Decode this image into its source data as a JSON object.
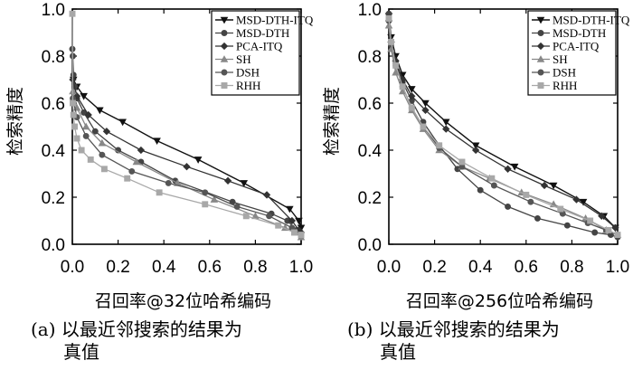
{
  "chart_data": [
    {
      "type": "line",
      "xlabel": "召回率@32位哈希编码",
      "ylabel": "检索精度",
      "caption_line1": "(a) 以最近邻搜索的结果为",
      "caption_line2": "真值",
      "xlim": [
        0.0,
        1.0
      ],
      "ylim": [
        0.0,
        1.0
      ],
      "xticks": [
        "0.0",
        "0.2",
        "0.4",
        "0.6",
        "0.8",
        "1.0"
      ],
      "yticks": [
        "0.0",
        "0.2",
        "0.4",
        "0.6",
        "0.8",
        "1.0"
      ],
      "legend_position": "top-right",
      "series": [
        {
          "name": "MSD-DTH-ITQ",
          "marker": "triangle-down",
          "x": [
            0.005,
            0.02,
            0.05,
            0.12,
            0.22,
            0.37,
            0.55,
            0.75,
            0.95,
            0.99,
            1.0
          ],
          "y": [
            0.7,
            0.67,
            0.63,
            0.57,
            0.52,
            0.44,
            0.36,
            0.26,
            0.15,
            0.1,
            0.07
          ]
        },
        {
          "name": "MSD-DTH",
          "marker": "circle",
          "x": [
            0.0,
            0.002,
            0.005,
            0.01,
            0.02,
            0.05,
            0.1,
            0.2,
            0.3,
            0.45,
            0.7,
            0.87,
            0.94,
            0.98,
            1.0
          ],
          "y": [
            0.83,
            0.8,
            0.72,
            0.67,
            0.62,
            0.56,
            0.48,
            0.4,
            0.35,
            0.27,
            0.18,
            0.13,
            0.1,
            0.06,
            0.04
          ]
        },
        {
          "name": "PCA-ITQ",
          "marker": "diamond",
          "x": [
            0.002,
            0.02,
            0.07,
            0.15,
            0.3,
            0.5,
            0.68,
            0.85,
            0.96,
            0.99,
            1.0
          ],
          "y": [
            0.7,
            0.63,
            0.55,
            0.48,
            0.4,
            0.33,
            0.27,
            0.21,
            0.1,
            0.06,
            0.05
          ]
        },
        {
          "name": "SH",
          "marker": "triangle-up",
          "x": [
            0.002,
            0.02,
            0.06,
            0.13,
            0.28,
            0.46,
            0.62,
            0.8,
            0.93,
            0.98,
            1.0
          ],
          "y": [
            0.65,
            0.58,
            0.5,
            0.43,
            0.35,
            0.26,
            0.19,
            0.12,
            0.07,
            0.05,
            0.03
          ]
        },
        {
          "name": "DSH",
          "marker": "circle",
          "x": [
            0.002,
            0.02,
            0.06,
            0.13,
            0.26,
            0.42,
            0.58,
            0.72,
            0.86,
            0.96,
            1.0
          ],
          "y": [
            0.62,
            0.54,
            0.46,
            0.38,
            0.31,
            0.26,
            0.22,
            0.16,
            0.12,
            0.07,
            0.04
          ]
        },
        {
          "name": "RHH",
          "marker": "square",
          "x": [
            0.0,
            0.002,
            0.005,
            0.01,
            0.02,
            0.04,
            0.08,
            0.14,
            0.24,
            0.38,
            0.58,
            0.76,
            0.9,
            0.97,
            1.0
          ],
          "y": [
            0.98,
            0.6,
            0.55,
            0.5,
            0.45,
            0.4,
            0.36,
            0.32,
            0.28,
            0.22,
            0.17,
            0.12,
            0.08,
            0.05,
            0.04
          ]
        }
      ]
    },
    {
      "type": "line",
      "xlabel": "召回率@256位哈希编码",
      "ylabel": "检索精度",
      "caption_line1": "(b) 以最近邻搜索的结果为",
      "caption_line2": "真值",
      "xlim": [
        0.0,
        1.0
      ],
      "ylim": [
        0.0,
        1.0
      ],
      "xticks": [
        "0.0",
        "0.2",
        "0.4",
        "0.6",
        "0.8",
        "1.0"
      ],
      "yticks": [
        "0.0",
        "0.2",
        "0.4",
        "0.6",
        "0.8",
        "1.0"
      ],
      "legend_position": "top-right",
      "series": [
        {
          "name": "MSD-DTH-ITQ",
          "marker": "triangle-down",
          "x": [
            0.0,
            0.01,
            0.03,
            0.06,
            0.1,
            0.16,
            0.25,
            0.38,
            0.55,
            0.72,
            0.85,
            0.94,
            0.99
          ],
          "y": [
            0.97,
            0.88,
            0.8,
            0.72,
            0.66,
            0.6,
            0.52,
            0.42,
            0.33,
            0.25,
            0.18,
            0.12,
            0.07
          ]
        },
        {
          "name": "MSD-DTH",
          "marker": "circle",
          "x": [
            0.0,
            0.01,
            0.03,
            0.06,
            0.1,
            0.15,
            0.22,
            0.3,
            0.4,
            0.52,
            0.65,
            0.78,
            0.9,
            0.97,
            1.0
          ],
          "y": [
            0.98,
            0.85,
            0.77,
            0.69,
            0.61,
            0.52,
            0.42,
            0.32,
            0.23,
            0.16,
            0.11,
            0.08,
            0.05,
            0.04,
            0.03
          ]
        },
        {
          "name": "PCA-ITQ",
          "marker": "diamond",
          "x": [
            0.0,
            0.01,
            0.03,
            0.06,
            0.1,
            0.16,
            0.25,
            0.38,
            0.52,
            0.68,
            0.82,
            0.93,
            0.99
          ],
          "y": [
            0.95,
            0.86,
            0.78,
            0.7,
            0.63,
            0.57,
            0.49,
            0.4,
            0.32,
            0.25,
            0.19,
            0.12,
            0.07
          ]
        },
        {
          "name": "SH",
          "marker": "triangle-up",
          "x": [
            0.0,
            0.01,
            0.03,
            0.06,
            0.1,
            0.15,
            0.22,
            0.32,
            0.44,
            0.58,
            0.72,
            0.86,
            0.95,
            1.0
          ],
          "y": [
            0.93,
            0.83,
            0.73,
            0.65,
            0.57,
            0.49,
            0.4,
            0.33,
            0.28,
            0.22,
            0.17,
            0.11,
            0.06,
            0.04
          ]
        },
        {
          "name": "DSH",
          "marker": "circle",
          "x": [
            0.0,
            0.01,
            0.03,
            0.06,
            0.1,
            0.15,
            0.22,
            0.32,
            0.46,
            0.62,
            0.76,
            0.87,
            0.95,
            1.0
          ],
          "y": [
            0.95,
            0.85,
            0.76,
            0.67,
            0.58,
            0.5,
            0.41,
            0.33,
            0.25,
            0.18,
            0.13,
            0.09,
            0.06,
            0.04
          ]
        },
        {
          "name": "RHH",
          "marker": "square",
          "x": [
            0.0,
            0.01,
            0.03,
            0.06,
            0.1,
            0.15,
            0.22,
            0.32,
            0.45,
            0.6,
            0.75,
            0.88,
            0.96,
            1.0
          ],
          "y": [
            0.96,
            0.86,
            0.76,
            0.67,
            0.58,
            0.5,
            0.42,
            0.35,
            0.28,
            0.21,
            0.15,
            0.1,
            0.06,
            0.04
          ]
        }
      ]
    }
  ]
}
